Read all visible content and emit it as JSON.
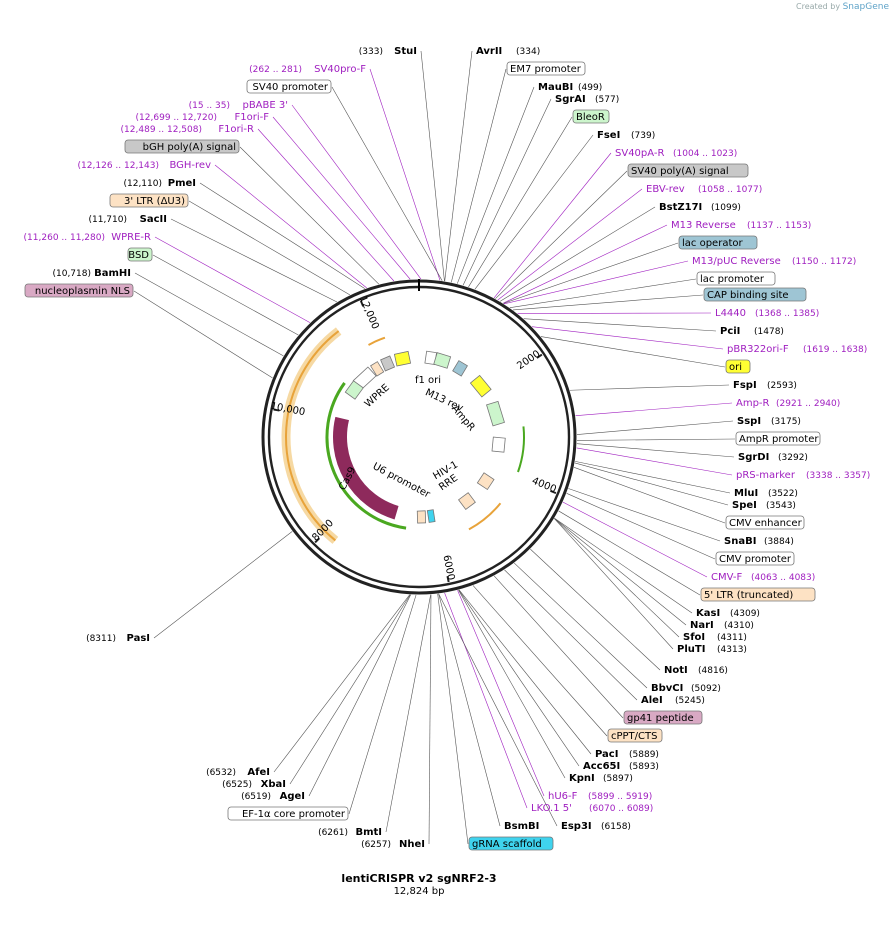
{
  "watermark": {
    "prefix": "Created by",
    "brand": "SnapGene"
  },
  "plasmid": {
    "name": "lentiCRISPR v2 sgNRF2-3",
    "size_label": "12,824 bp"
  },
  "ticks": [
    "2000",
    "4000",
    "6000",
    "8000",
    "10,000",
    "12,000"
  ],
  "inner_labels": [
    "f1 ori",
    "M13 rev",
    "AmpR",
    "WPRE",
    "U6 promoter",
    "HIV-1",
    "RRE",
    "Cas9"
  ],
  "features_right": [
    {
      "name": "StuI",
      "coord": "(333)",
      "kind": "enzyme"
    },
    {
      "name": "AvrII",
      "coord": "(334)",
      "kind": "enzyme"
    },
    {
      "name": "EM7 promoter",
      "kind": "promoter"
    },
    {
      "name": "MauBI",
      "coord": "(499)",
      "kind": "enzyme"
    },
    {
      "name": "SgrAI",
      "coord": "(577)",
      "kind": "enzyme"
    },
    {
      "name": "BleoR",
      "kind": "cds"
    },
    {
      "name": "FseI",
      "coord": "(739)",
      "kind": "enzyme"
    },
    {
      "name": "SV40pA-R",
      "coord": "(1004 .. 1023)",
      "kind": "primer"
    },
    {
      "name": "SV40 poly(A) signal",
      "kind": "polya"
    },
    {
      "name": "EBV-rev",
      "coord": "(1058 .. 1077)",
      "kind": "primer"
    },
    {
      "name": "BstZ17I",
      "coord": "(1099)",
      "kind": "enzyme"
    },
    {
      "name": "M13 Reverse",
      "coord": "(1137 .. 1153)",
      "kind": "primer"
    },
    {
      "name": "lac operator",
      "kind": "protein_bind"
    },
    {
      "name": "M13/pUC Reverse",
      "coord": "(1150 .. 1172)",
      "kind": "primer"
    },
    {
      "name": "lac promoter",
      "kind": "promoter"
    },
    {
      "name": "CAP binding site",
      "kind": "protein_bind"
    },
    {
      "name": "L4440",
      "coord": "(1368 .. 1385)",
      "kind": "primer"
    },
    {
      "name": "PciI",
      "coord": "(1478)",
      "kind": "enzyme"
    },
    {
      "name": "pBR322ori-F",
      "coord": "(1619 .. 1638)",
      "kind": "primer"
    },
    {
      "name": "ori",
      "kind": "origin"
    },
    {
      "name": "FspI",
      "coord": "(2593)",
      "kind": "enzyme"
    },
    {
      "name": "Amp-R",
      "coord": "(2921 .. 2940)",
      "kind": "primer"
    },
    {
      "name": "SspI",
      "coord": "(3175)",
      "kind": "enzyme"
    },
    {
      "name": "AmpR promoter",
      "kind": "promoter"
    },
    {
      "name": "SgrDI",
      "coord": "(3292)",
      "kind": "enzyme"
    },
    {
      "name": "pRS-marker",
      "coord": "(3338 .. 3357)",
      "kind": "primer"
    },
    {
      "name": "MluI",
      "coord": "(3522)",
      "kind": "enzyme"
    },
    {
      "name": "SpeI",
      "coord": "(3543)",
      "kind": "enzyme"
    },
    {
      "name": "CMV enhancer",
      "kind": "enhancer"
    },
    {
      "name": "SnaBI",
      "coord": "(3884)",
      "kind": "enzyme"
    },
    {
      "name": "CMV promoter",
      "kind": "promoter"
    },
    {
      "name": "CMV-F",
      "coord": "(4063 .. 4083)",
      "kind": "primer"
    },
    {
      "name": "5' LTR (truncated)",
      "kind": "ltr"
    },
    {
      "name": "KasI",
      "coord": "(4309)",
      "kind": "enzyme"
    },
    {
      "name": "NarI",
      "coord": "(4310)",
      "kind": "enzyme"
    },
    {
      "name": "SfoI",
      "coord": "(4311)",
      "kind": "enzyme"
    },
    {
      "name": "PluTI",
      "coord": "(4313)",
      "kind": "enzyme"
    },
    {
      "name": "NotI",
      "coord": "(4816)",
      "kind": "enzyme"
    },
    {
      "name": "BbvCI",
      "coord": "(5092)",
      "kind": "enzyme"
    },
    {
      "name": "AleI",
      "coord": "(5245)",
      "kind": "enzyme"
    },
    {
      "name": "gp41 peptide",
      "kind": "tag"
    },
    {
      "name": "cPPT/CTS",
      "kind": "ltr"
    },
    {
      "name": "PacI",
      "coord": "(5889)",
      "kind": "enzyme"
    },
    {
      "name": "Acc65I",
      "coord": "(5893)",
      "kind": "enzyme"
    },
    {
      "name": "KpnI",
      "coord": "(5897)",
      "kind": "enzyme"
    },
    {
      "name": "hU6-F",
      "coord": "(5899 .. 5919)",
      "kind": "primer"
    },
    {
      "name": "LKO.1 5'",
      "coord": "(6070 .. 6089)",
      "kind": "primer"
    },
    {
      "name": "BsmBI",
      "coord": "",
      "kind": "enzyme"
    },
    {
      "name": "Esp3I",
      "coord": "(6158)",
      "kind": "enzyme"
    },
    {
      "name": "gRNA scaffold",
      "kind": "misc_rna"
    }
  ],
  "features_left": [
    {
      "name": "SV40pro-F",
      "coord": "(262 .. 281)",
      "kind": "primer"
    },
    {
      "name": "SV40 promoter",
      "kind": "promoter"
    },
    {
      "name": "pBABE 3'",
      "coord": "(15 .. 35)",
      "kind": "primer"
    },
    {
      "name": "F1ori-F",
      "coord": "(12,699 .. 12,720)",
      "kind": "primer"
    },
    {
      "name": "F1ori-R",
      "coord": "(12,489 .. 12,508)",
      "kind": "primer"
    },
    {
      "name": "bGH poly(A) signal",
      "kind": "polya"
    },
    {
      "name": "BGH-rev",
      "coord": "(12,126 .. 12,143)",
      "kind": "primer"
    },
    {
      "name": "PmeI",
      "coord": "(12,110)",
      "kind": "enzyme"
    },
    {
      "name": "3' LTR (ΔU3)",
      "kind": "ltr"
    },
    {
      "name": "SacII",
      "coord": "(11,710)",
      "kind": "enzyme"
    },
    {
      "name": "WPRE-R",
      "coord": "(11,260 .. 11,280)",
      "kind": "primer"
    },
    {
      "name": "BSD",
      "kind": "cds"
    },
    {
      "name": "BamHI",
      "coord": "(10,718)",
      "kind": "enzyme"
    },
    {
      "name": "nucleoplasmin NLS",
      "kind": "tag"
    },
    {
      "name": "PasI",
      "coord": "(8311)",
      "kind": "enzyme"
    },
    {
      "name": "AfeI",
      "coord": "(6532)",
      "kind": "enzyme"
    },
    {
      "name": "XbaI",
      "coord": "(6525)",
      "kind": "enzyme"
    },
    {
      "name": "AgeI",
      "coord": "(6519)",
      "kind": "enzyme"
    },
    {
      "name": "EF-1α core promoter",
      "kind": "promoter"
    },
    {
      "name": "BmtI",
      "coord": "(6261)",
      "kind": "enzyme"
    },
    {
      "name": "NheI",
      "coord": "(6257)",
      "kind": "enzyme"
    }
  ],
  "colors": {
    "backbone": "#222222",
    "primer": "#a020c0",
    "promoter_fill": "#ffffff",
    "cds_fill": "#ccf5cc",
    "polya_fill": "#c8c8c8",
    "protein_bind_fill": "#9ec5d4",
    "origin_fill": "#ffff33",
    "ltr_fill": "#fde2c4",
    "tag_fill": "#d9a9c4",
    "misc_rna_fill": "#3fd3ee",
    "cas9": "#8e2a5c",
    "orange_arc": "#e8a33a",
    "green_arc": "#4aa820"
  }
}
